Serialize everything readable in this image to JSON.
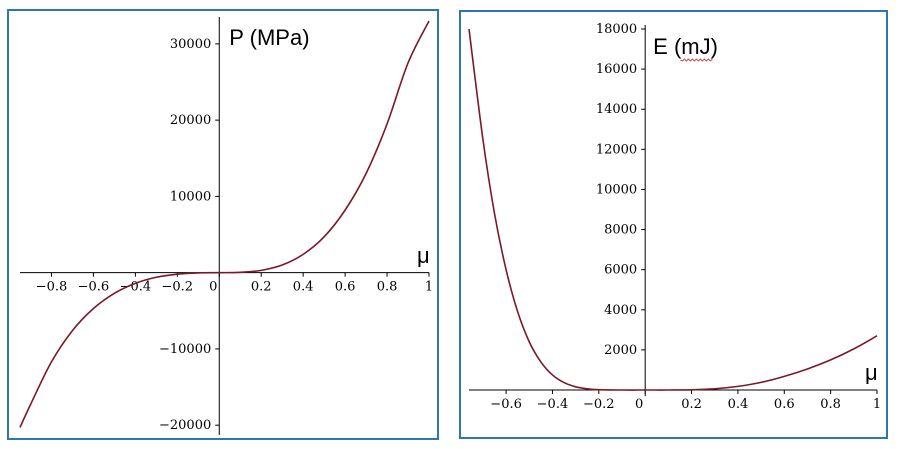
{
  "chart_data": [
    {
      "type": "line",
      "title": "",
      "xlabel": "μ",
      "ylabel": "P (MPa)",
      "xlim": [
        -0.95,
        1.0
      ],
      "ylim": [
        -20500,
        33000
      ],
      "grid": false,
      "x_ticks": [
        -0.8,
        -0.6,
        -0.4,
        -0.2,
        0,
        0.2,
        0.4,
        0.6,
        0.8,
        1
      ],
      "x_tick_labels": [
        "−0.8",
        "−0.6",
        "−0.4",
        "−0.2",
        "0",
        "0.2",
        "0.4",
        "0.6",
        "0.8",
        "1"
      ],
      "y_ticks": [
        -20000,
        -10000,
        10000,
        20000,
        30000
      ],
      "y_tick_labels": [
        "−20000",
        "−10000",
        "10000",
        "20000",
        "30000"
      ],
      "series": [
        {
          "color": "#7a1a26",
          "x": [
            -0.95,
            -0.9,
            -0.8,
            -0.7,
            -0.6,
            -0.5,
            -0.4,
            -0.3,
            -0.2,
            -0.1,
            0,
            0.1,
            0.2,
            0.3,
            0.4,
            0.5,
            0.6,
            0.7,
            0.8,
            0.9,
            1.0
          ],
          "y": [
            -20300,
            -17300,
            -11700,
            -7600,
            -4700,
            -2700,
            -1400,
            -600,
            -200,
            -30,
            0,
            40,
            300,
            1000,
            2400,
            4700,
            8200,
            13000,
            19500,
            27500,
            33000
          ]
        }
      ]
    },
    {
      "type": "line",
      "title": "",
      "xlabel": "μ",
      "ylabel": "E (mJ)",
      "xlim": [
        -0.76,
        1.0
      ],
      "ylim": [
        0,
        18000
      ],
      "grid": false,
      "x_ticks": [
        -0.6,
        -0.4,
        -0.2,
        0,
        0.2,
        0.4,
        0.6,
        0.8,
        1
      ],
      "x_tick_labels": [
        "−0.6",
        "−0.4",
        "−0.2",
        "0",
        "0.2",
        "0.4",
        "0.6",
        "0.8",
        "1"
      ],
      "y_ticks": [
        2000,
        4000,
        6000,
        8000,
        10000,
        12000,
        14000,
        16000,
        18000
      ],
      "y_tick_labels": [
        "2000",
        "4000",
        "6000",
        "8000",
        "10000",
        "12000",
        "14000",
        "16000",
        "18000"
      ],
      "series": [
        {
          "color": "#7a1a26",
          "x": [
            -0.76,
            -0.7,
            -0.65,
            -0.6,
            -0.55,
            -0.5,
            -0.45,
            -0.4,
            -0.35,
            -0.3,
            -0.25,
            -0.2,
            -0.1,
            0,
            0.1,
            0.2,
            0.3,
            0.4,
            0.5,
            0.6,
            0.7,
            0.8,
            0.9,
            1.0
          ],
          "y": [
            18000,
            12500,
            8800,
            6000,
            3900,
            2400,
            1400,
            750,
            370,
            160,
            60,
            15,
            0,
            0,
            0,
            10,
            60,
            180,
            380,
            680,
            1050,
            1500,
            2050,
            2700
          ]
        }
      ]
    }
  ]
}
